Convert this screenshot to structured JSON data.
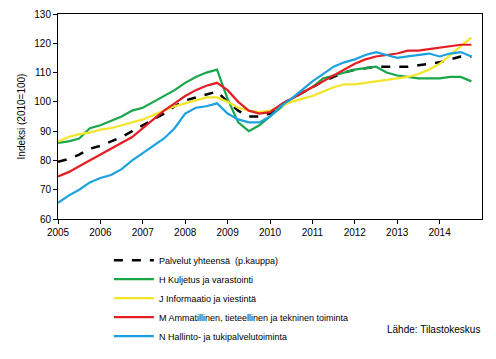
{
  "chart_data": {
    "type": "line",
    "y_label": "Indeksi (2010=100)",
    "source": "Lähde: Tilastokeskus",
    "x": [
      2005.0,
      2005.25,
      2005.5,
      2005.75,
      2006.0,
      2006.25,
      2006.5,
      2006.75,
      2007.0,
      2007.25,
      2007.5,
      2007.75,
      2008.0,
      2008.25,
      2008.5,
      2008.75,
      2009.0,
      2009.25,
      2009.5,
      2009.75,
      2010.0,
      2010.25,
      2010.5,
      2010.75,
      2011.0,
      2011.25,
      2011.5,
      2011.75,
      2012.0,
      2012.25,
      2012.5,
      2012.75,
      2013.0,
      2013.25,
      2013.5,
      2013.75,
      2014.0,
      2014.25,
      2014.5,
      2014.75
    ],
    "xlim": [
      2005,
      2015
    ],
    "xticks": [
      2005,
      2006,
      2007,
      2008,
      2009,
      2010,
      2011,
      2012,
      2013,
      2014
    ],
    "ylim": [
      60,
      130
    ],
    "yticks": [
      60,
      70,
      80,
      90,
      100,
      110,
      120,
      130
    ],
    "grid": false,
    "legend": "bottom",
    "series": [
      {
        "name": "Palvelut yhteensä  (p.kauppa)",
        "color": "#000000",
        "line_style": "dash",
        "values": [
          79.5,
          80.5,
          82,
          84,
          85,
          86.5,
          88,
          90,
          92,
          94,
          96,
          98.5,
          100.5,
          101.5,
          102.5,
          103.5,
          100,
          97,
          95,
          95,
          96,
          99,
          101,
          103,
          105,
          107,
          108.5,
          110,
          111,
          111.5,
          112,
          112,
          112,
          112,
          112.5,
          113,
          113.5,
          114.5,
          115.5,
          115.5
        ]
      },
      {
        "name": "H Kuljetus ja varastointi",
        "color": "#1aa64a",
        "line_style": "solid",
        "values": [
          86,
          86.5,
          87.5,
          91,
          92,
          93.5,
          95,
          97,
          98,
          100,
          102,
          104,
          106.5,
          108.5,
          110,
          111,
          101,
          93,
          90,
          92,
          95,
          98,
          101,
          103,
          105,
          108,
          109,
          110,
          111,
          111.5,
          112,
          110,
          109,
          108.5,
          108,
          108,
          108,
          108.5,
          108.5,
          107
        ]
      },
      {
        "name": "J Informaatio ja viestintä",
        "color": "#f2e52a",
        "line_style": "solid",
        "values": [
          86.5,
          88,
          89,
          89.5,
          90.5,
          91,
          92,
          93,
          94,
          95.5,
          97,
          98.5,
          99.5,
          100.5,
          101.5,
          101.5,
          100,
          98,
          97,
          96.5,
          97,
          98.5,
          100,
          101,
          102,
          103.5,
          105,
          106,
          106,
          106.5,
          107,
          107.5,
          108,
          108.5,
          109.5,
          111,
          113,
          116,
          119,
          122
        ]
      },
      {
        "name": "M Ammatillinen, tieteellinen ja tekninen toiminta",
        "color": "#e31e24",
        "line_style": "solid",
        "values": [
          74.5,
          76,
          78,
          80,
          82,
          84,
          86,
          88,
          91,
          94,
          97,
          99.5,
          102,
          104,
          105.5,
          106.5,
          104,
          100,
          97,
          96,
          96.5,
          99,
          101,
          103,
          105,
          107,
          109,
          111,
          113,
          114.5,
          115.5,
          116,
          116.5,
          117.5,
          117.5,
          118,
          118.5,
          119,
          119.5,
          119.5
        ]
      },
      {
        "name": "N Hallinto- ja tukipalvelutoiminta",
        "color": "#1ba1e2",
        "line_style": "solid",
        "values": [
          65.5,
          68,
          70,
          72.5,
          74,
          75,
          77,
          80,
          82.5,
          85,
          87.5,
          91,
          96,
          98,
          98.5,
          99.5,
          96,
          94,
          93,
          93,
          95,
          98.5,
          101,
          104,
          107,
          109.5,
          112,
          113.5,
          114.5,
          116,
          117,
          116,
          115,
          115.5,
          116,
          116.5,
          115.5,
          116.5,
          117,
          115.5
        ]
      }
    ]
  }
}
